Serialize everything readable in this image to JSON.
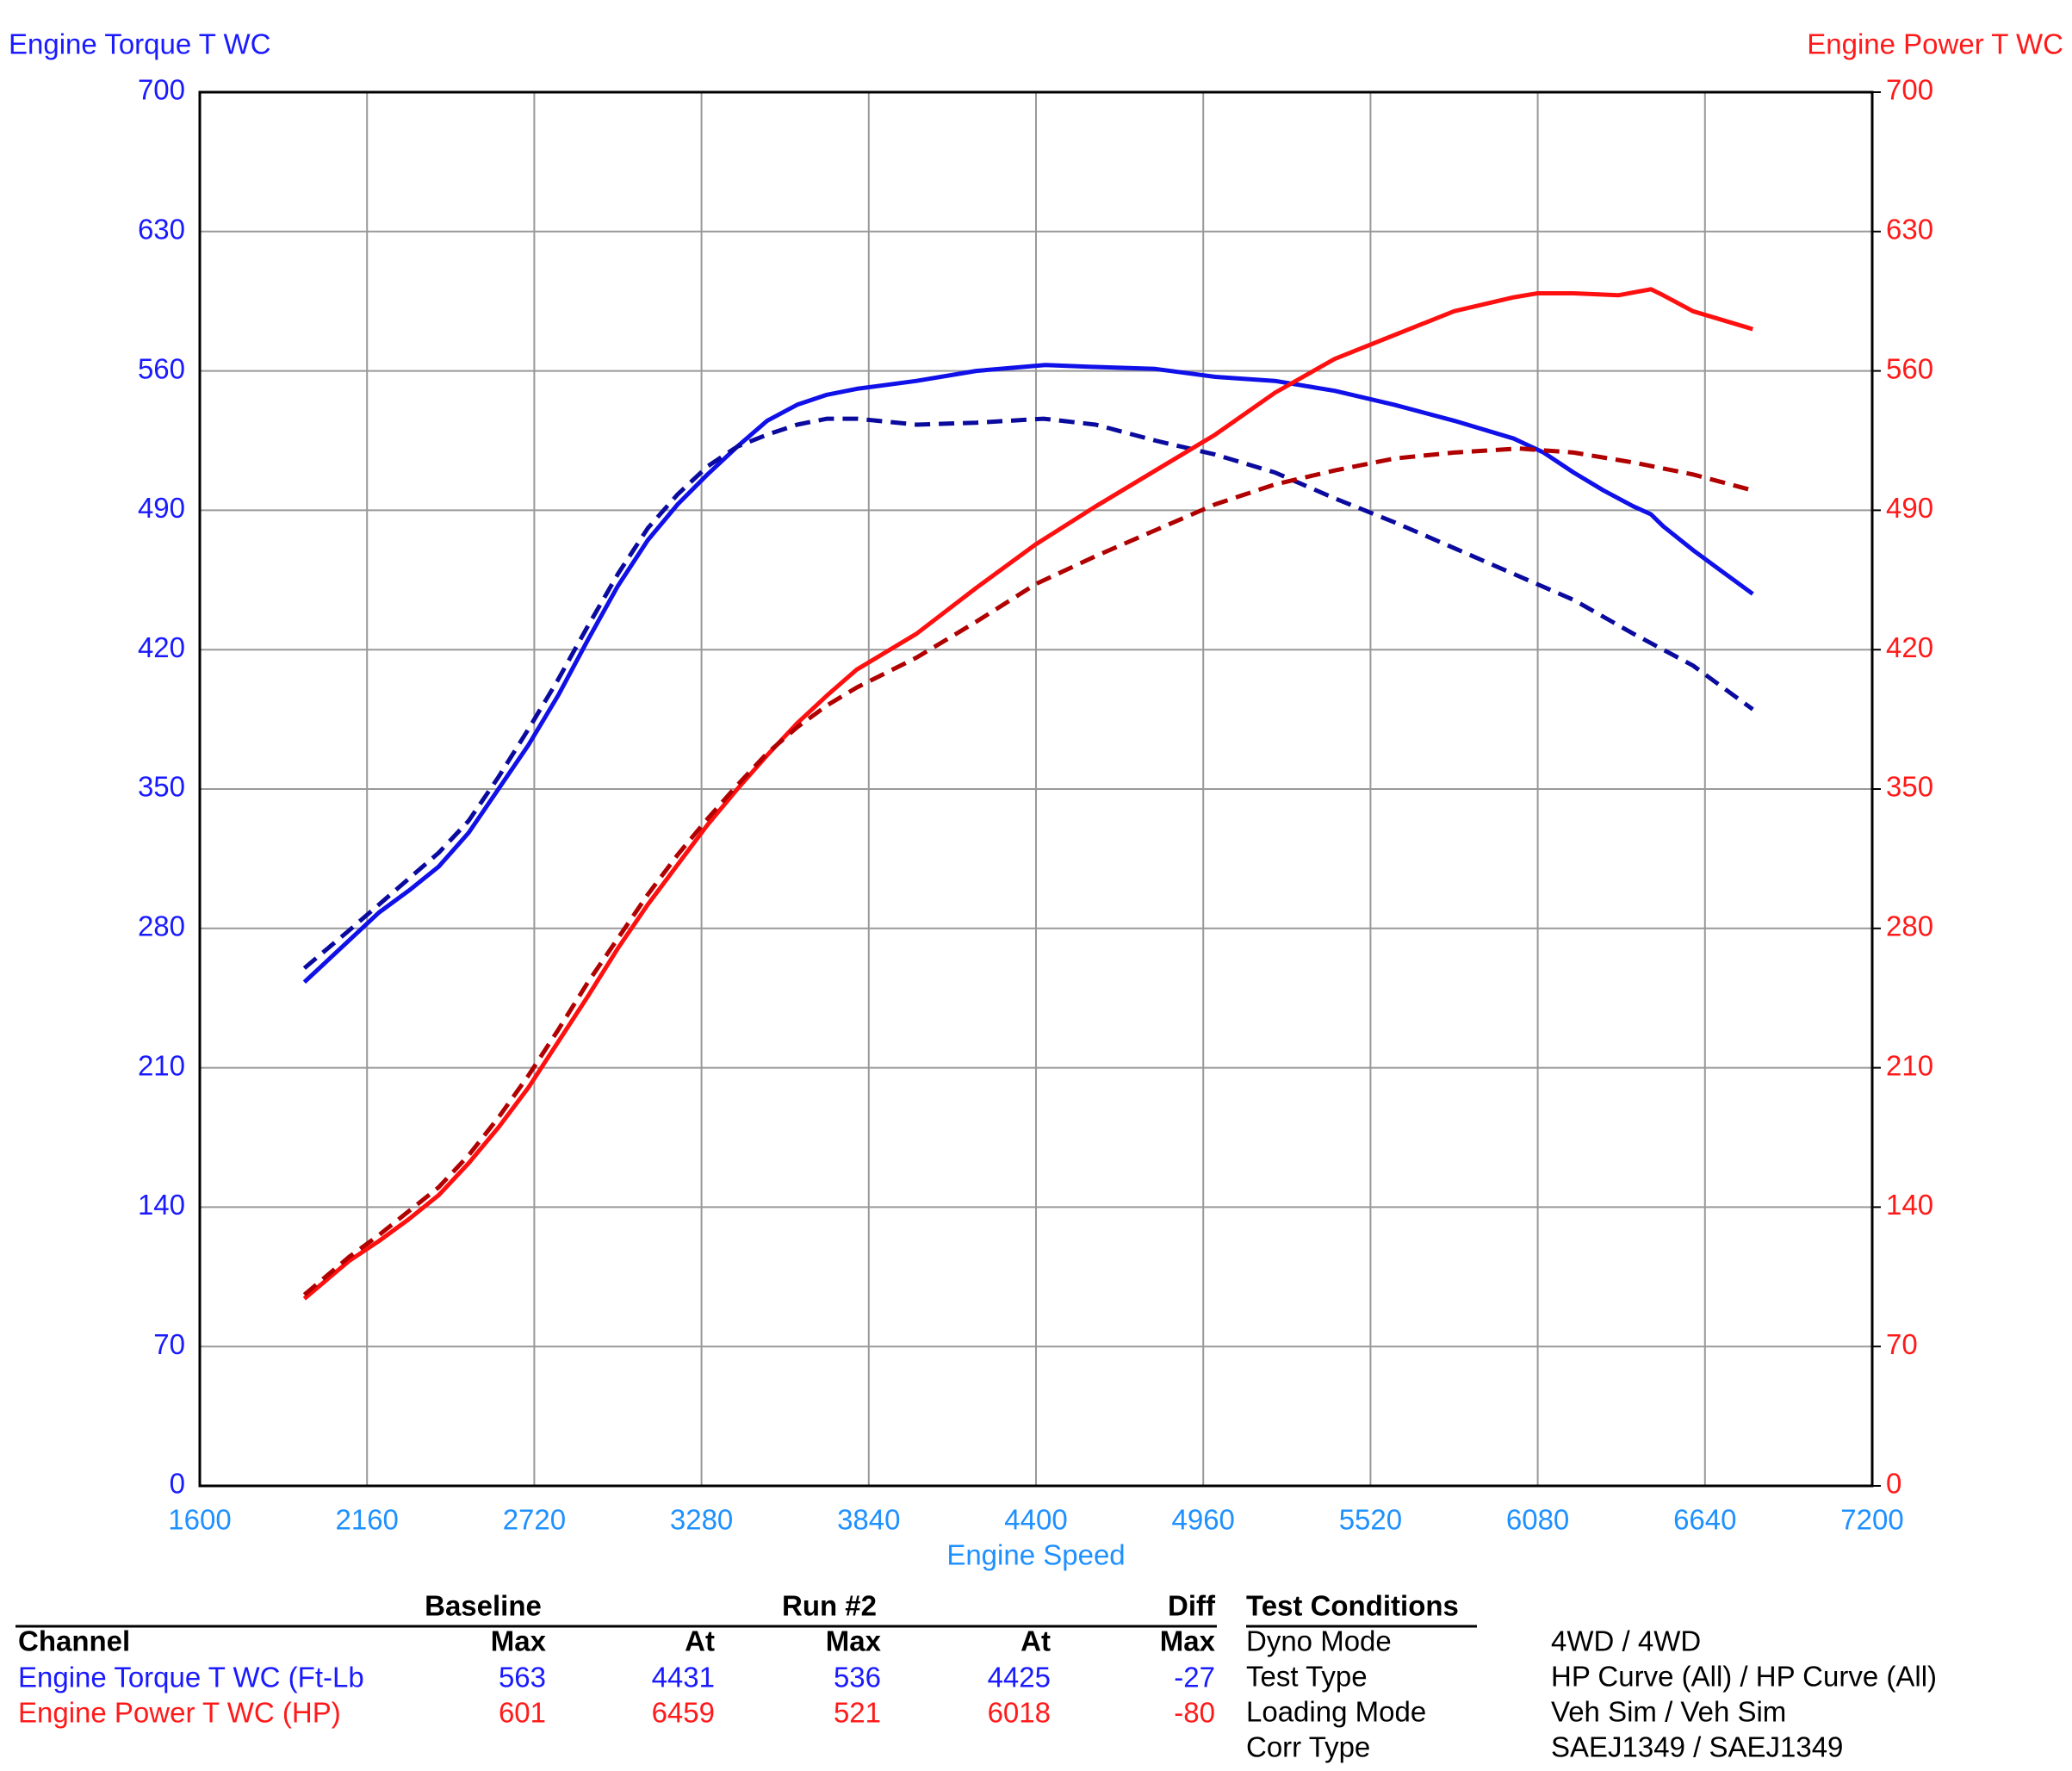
{
  "chart_data": {
    "type": "line",
    "ylabel": "Engine Torque T WC",
    "y2label": "Engine Power T WC",
    "xlabel": "Engine Speed",
    "y_color": "#1a1aff",
    "y2_color": "#ff1a1a",
    "x_color": "#1e90ff",
    "xlim": [
      1600,
      7200
    ],
    "xticks": [
      1600,
      2160,
      2720,
      3280,
      3840,
      4400,
      4960,
      5520,
      6080,
      6640,
      7200
    ],
    "ylim": [
      0,
      700
    ],
    "yticks": [
      0,
      70,
      140,
      210,
      280,
      350,
      420,
      490,
      560,
      630,
      700
    ],
    "y2lim": [
      0,
      700
    ],
    "y2ticks": [
      0,
      70,
      140,
      210,
      280,
      350,
      420,
      490,
      560,
      630,
      700
    ],
    "grid": true,
    "series": [
      {
        "color": "#1010e8",
        "dashed": false,
        "x": [
          1950,
          2100,
          2200,
          2300,
          2400,
          2500,
          2600,
          2700,
          2800,
          2900,
          3000,
          3100,
          3200,
          3300,
          3400,
          3500,
          3600,
          3700,
          3800,
          4000,
          4200,
          4431,
          4600,
          4800,
          5000,
          5200,
          5400,
          5600,
          5800,
          6000,
          6100,
          6200,
          6300,
          6400,
          6459,
          6500,
          6600,
          6700,
          6800
        ],
        "values": [
          253,
          274,
          288,
          299,
          311,
          328,
          350,
          372,
          397,
          425,
          452,
          475,
          493,
          508,
          522,
          535,
          543,
          548,
          551,
          555,
          560,
          563,
          562,
          561,
          557,
          555,
          550,
          543,
          535,
          526,
          519,
          509,
          500,
          492,
          488,
          482,
          470,
          459,
          448
        ]
      },
      {
        "color": "#0a0a9e",
        "dashed": true,
        "x": [
          1950,
          2100,
          2200,
          2300,
          2400,
          2500,
          2600,
          2700,
          2800,
          2900,
          3000,
          3100,
          3200,
          3300,
          3400,
          3500,
          3600,
          3700,
          3800,
          4000,
          4200,
          4425,
          4600,
          4800,
          5000,
          5200,
          5400,
          5600,
          5800,
          6000,
          6200,
          6400,
          6600,
          6800
        ],
        "values": [
          260,
          279,
          292,
          305,
          318,
          334,
          356,
          380,
          405,
          432,
          458,
          481,
          498,
          512,
          522,
          528,
          533,
          536,
          536,
          533,
          534,
          536,
          533,
          525,
          518,
          509,
          496,
          484,
          471,
          458,
          445,
          428,
          412,
          390
        ]
      },
      {
        "color": "#ff1010",
        "dashed": false,
        "axis": "y2",
        "x": [
          1950,
          2100,
          2200,
          2300,
          2400,
          2500,
          2600,
          2700,
          2800,
          2900,
          3000,
          3100,
          3200,
          3300,
          3400,
          3500,
          3600,
          3700,
          3800,
          4000,
          4200,
          4400,
          4600,
          4800,
          5000,
          5200,
          5400,
          5600,
          5800,
          6000,
          6080,
          6200,
          6350,
          6459,
          6500,
          6600,
          6800
        ],
        "values": [
          94,
          113,
          123,
          134,
          146,
          162,
          180,
          200,
          223,
          246,
          270,
          292,
          312,
          332,
          350,
          367,
          383,
          397,
          410,
          428,
          451,
          473,
          492,
          510,
          528,
          549,
          566,
          578,
          590,
          597,
          599,
          599,
          598,
          601,
          598,
          590,
          581
        ]
      },
      {
        "color": "#b00000",
        "dashed": true,
        "axis": "y2",
        "x": [
          1950,
          2100,
          2200,
          2300,
          2400,
          2500,
          2600,
          2700,
          2800,
          2900,
          3000,
          3100,
          3200,
          3300,
          3400,
          3500,
          3600,
          3700,
          3800,
          4000,
          4200,
          4400,
          4600,
          4800,
          5000,
          5200,
          5400,
          5600,
          5800,
          6018,
          6200,
          6400,
          6600,
          6800
        ],
        "values": [
          96,
          115,
          126,
          138,
          150,
          166,
          185,
          206,
          229,
          253,
          275,
          297,
          317,
          335,
          352,
          368,
          381,
          392,
          401,
          416,
          434,
          453,
          467,
          480,
          493,
          503,
          510,
          516,
          519,
          521,
          519,
          514,
          508,
          500
        ]
      }
    ]
  },
  "table": {
    "group_headers": [
      "Baseline",
      "Run #2",
      "Diff"
    ],
    "columns": [
      "Channel",
      "Max",
      "At",
      "Max",
      "At",
      "Max"
    ],
    "rows": [
      {
        "color": "#1a1aff",
        "cells": [
          "Engine Torque T WC (Ft-Lb",
          563,
          4431,
          536,
          4425,
          -27
        ]
      },
      {
        "color": "#ff1a1a",
        "cells": [
          "Engine Power T WC (HP)",
          601,
          6459,
          521,
          6018,
          -80
        ]
      }
    ]
  },
  "test_conditions": {
    "title": "Test Conditions",
    "rows": [
      [
        "Dyno Mode",
        "4WD / 4WD"
      ],
      [
        "Test Type",
        "HP Curve (All) / HP Curve (All)"
      ],
      [
        "Loading Mode",
        "Veh Sim / Veh Sim"
      ],
      [
        "Corr Type",
        "SAEJ1349 / SAEJ1349"
      ]
    ]
  }
}
